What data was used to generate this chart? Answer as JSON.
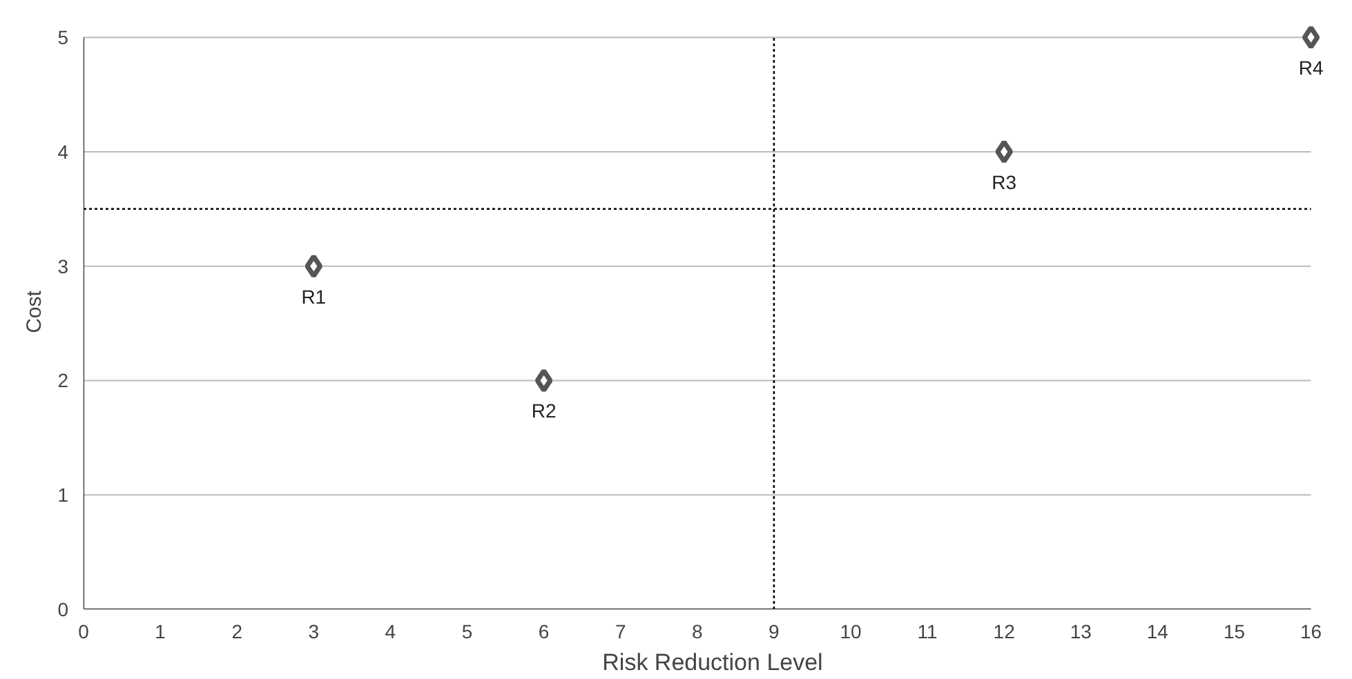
{
  "chart_data": {
    "type": "scatter",
    "xlabel": "Risk Reduction Level",
    "ylabel": "Cost",
    "x": [
      3,
      6,
      12,
      16
    ],
    "series": [
      {
        "color": "#555555",
        "values": [
          3,
          2,
          4,
          5
        ]
      }
    ],
    "annotations": [
      {
        "text": "R1",
        "x": 3,
        "y": 3
      },
      {
        "text": "R2",
        "x": 6,
        "y": 2
      },
      {
        "text": "R3",
        "x": 12,
        "y": 4
      },
      {
        "text": "R4",
        "x": 16,
        "y": 5
      }
    ],
    "ref_lines": [
      {
        "axis": "x",
        "value": 9,
        "line_style": "dotted",
        "color": "#000000"
      },
      {
        "axis": "y",
        "value": 3.5,
        "line_style": "dotted",
        "color": "#000000"
      }
    ],
    "xlim": [
      0,
      16
    ],
    "ylim": [
      0,
      5
    ],
    "xticks": [
      0,
      1,
      2,
      3,
      4,
      5,
      6,
      7,
      8,
      9,
      10,
      11,
      12,
      13,
      14,
      15,
      16
    ],
    "yticks": [
      0,
      1,
      2,
      3,
      4,
      5
    ],
    "grid": "y",
    "marker": "diamond"
  }
}
